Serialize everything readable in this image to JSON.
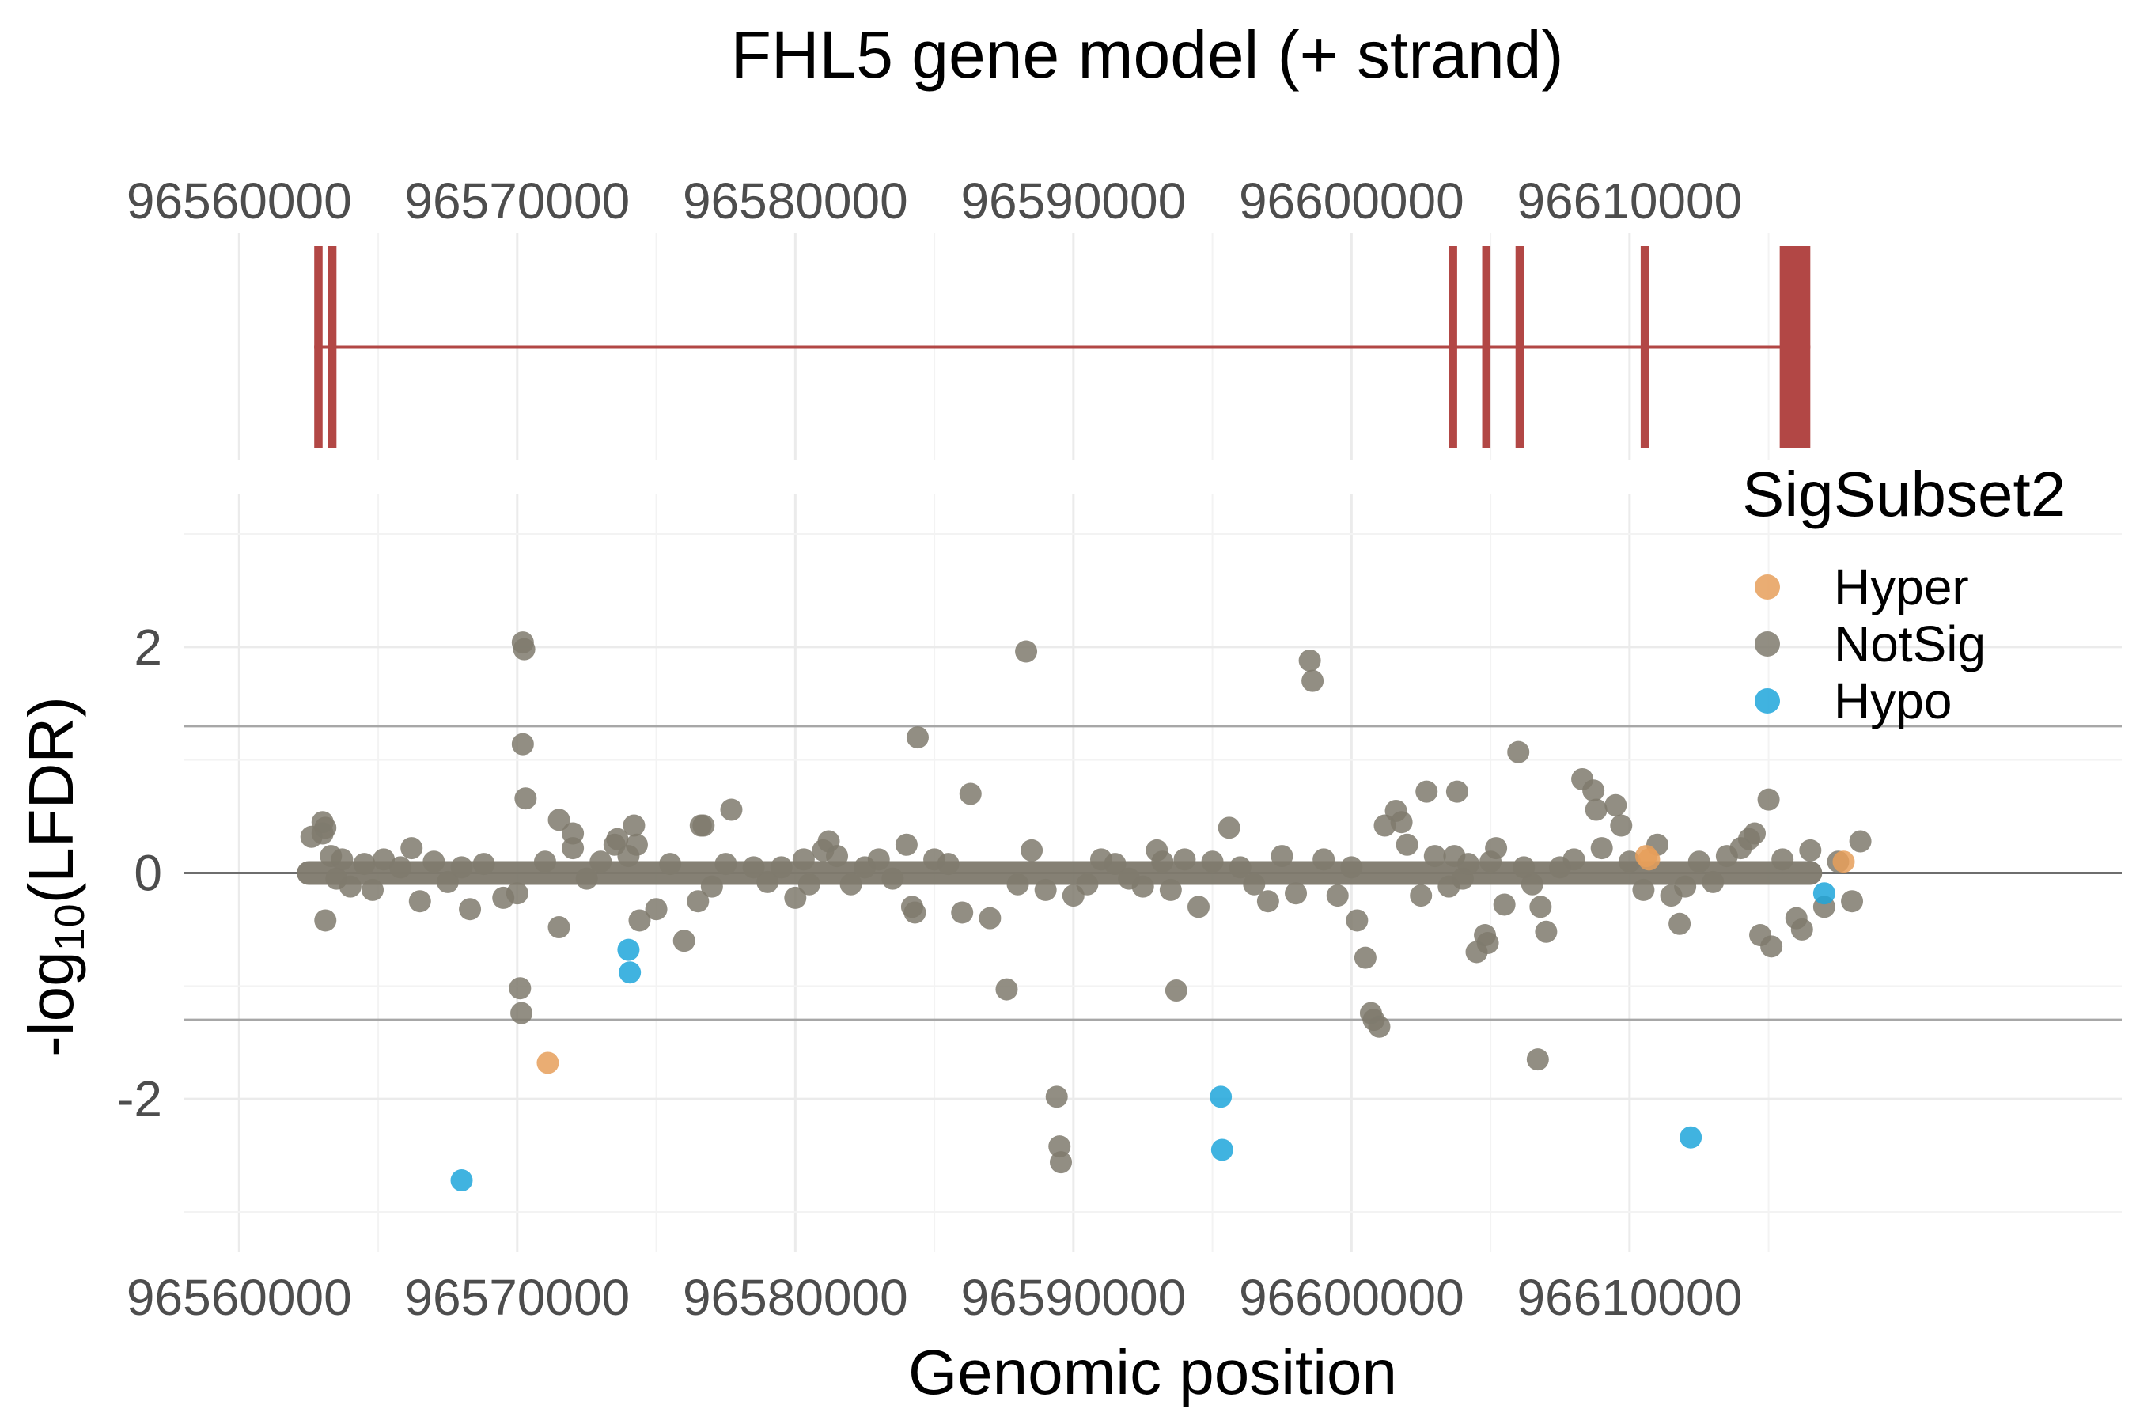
{
  "chart_data": [
    {
      "type": "gene_model",
      "title": "FHL5 gene model (+ strand)",
      "x_ticks": [
        96560000,
        96570000,
        96580000,
        96590000,
        96600000,
        96610000
      ],
      "x_tick_labels": [
        "96560000",
        "96570000",
        "96580000",
        "96590000",
        "96600000",
        "96610000"
      ],
      "xlim": [
        96558000,
        96627700
      ],
      "gene": {
        "start": 96562700,
        "end": 96616500
      },
      "exons": [
        {
          "start": 96562700,
          "end": 96563000
        },
        {
          "start": 96563200,
          "end": 96563500
        },
        {
          "start": 96603500,
          "end": 96603800
        },
        {
          "start": 96604700,
          "end": 96605000
        },
        {
          "start": 96605900,
          "end": 96606200
        },
        {
          "start": 96610400,
          "end": 96610700
        },
        {
          "start": 96615400,
          "end": 96616500
        }
      ],
      "colors": {
        "exon": "#b24745",
        "intron": "#b24745"
      }
    },
    {
      "type": "scatter",
      "xlabel": "Genomic position",
      "ylabel_main": "-log",
      "ylabel_sub": "10",
      "ylabel_tail": "(LFDR)",
      "x_ticks": [
        96560000,
        96570000,
        96580000,
        96590000,
        96600000,
        96610000
      ],
      "x_tick_labels": [
        "96560000",
        "96570000",
        "96580000",
        "96590000",
        "96600000",
        "96610000"
      ],
      "y_ticks": [
        -2,
        0,
        2
      ],
      "y_tick_labels": [
        "-2",
        "0",
        "2"
      ],
      "xlim": [
        96558000,
        96627700
      ],
      "ylim": [
        -3.35,
        3.35
      ],
      "hlines": [
        1.3,
        0,
        -1.3
      ],
      "grid": true,
      "legend": {
        "title": "SigSubset2",
        "placement": "top-right",
        "entries": [
          {
            "name": "Hyper",
            "color": "#E69F5B"
          },
          {
            "name": "NotSig",
            "color": "#7F7A6D"
          },
          {
            "name": "Hypo",
            "color": "#1FA6DA"
          }
        ]
      },
      "baseline": {
        "start": 96562500,
        "end": 96616500,
        "y": 0,
        "series": "NotSig"
      },
      "series": [
        {
          "name": "NotSig",
          "color": "#7F7A6D",
          "points": [
            [
              96562600,
              0.32
            ],
            [
              96563000,
              0.45
            ],
            [
              96563100,
              0.4
            ],
            [
              96563000,
              0.35
            ],
            [
              96563100,
              -0.42
            ],
            [
              96563300,
              0.15
            ],
            [
              96563500,
              -0.05
            ],
            [
              96563700,
              0.12
            ],
            [
              96564000,
              -0.12
            ],
            [
              96564500,
              0.08
            ],
            [
              96564800,
              -0.15
            ],
            [
              96565200,
              0.12
            ],
            [
              96565800,
              0.05
            ],
            [
              96566200,
              0.22
            ],
            [
              96566500,
              -0.25
            ],
            [
              96567000,
              0.1
            ],
            [
              96567500,
              -0.08
            ],
            [
              96568000,
              0.05
            ],
            [
              96568300,
              -0.32
            ],
            [
              96568800,
              0.08
            ],
            [
              96569500,
              -0.22
            ],
            [
              96570000,
              -0.18
            ],
            [
              96570200,
              2.04
            ],
            [
              96570250,
              1.98
            ],
            [
              96570200,
              1.14
            ],
            [
              96570300,
              0.66
            ],
            [
              96570100,
              -1.02
            ],
            [
              96570150,
              -1.24
            ],
            [
              96571000,
              0.1
            ],
            [
              96571500,
              0.47
            ],
            [
              96571500,
              -0.48
            ],
            [
              96572000,
              0.35
            ],
            [
              96572000,
              0.22
            ],
            [
              96572500,
              -0.05
            ],
            [
              96573000,
              0.1
            ],
            [
              96573500,
              0.25
            ],
            [
              96573600,
              0.3
            ],
            [
              96574000,
              0.15
            ],
            [
              96574200,
              0.42
            ],
            [
              96574300,
              0.25
            ],
            [
              96574400,
              -0.42
            ],
            [
              96575000,
              -0.32
            ],
            [
              96575500,
              0.08
            ],
            [
              96576000,
              -0.6
            ],
            [
              96576500,
              -0.25
            ],
            [
              96576600,
              0.42
            ],
            [
              96576700,
              0.42
            ],
            [
              96577000,
              -0.12
            ],
            [
              96577500,
              0.08
            ],
            [
              96577700,
              0.56
            ],
            [
              96578500,
              0.05
            ],
            [
              96579000,
              -0.08
            ],
            [
              96579500,
              0.05
            ],
            [
              96580000,
              -0.22
            ],
            [
              96580300,
              0.12
            ],
            [
              96580500,
              -0.1
            ],
            [
              96581000,
              0.2
            ],
            [
              96581200,
              0.28
            ],
            [
              96581500,
              0.15
            ],
            [
              96582000,
              -0.1
            ],
            [
              96582500,
              0.05
            ],
            [
              96583000,
              0.12
            ],
            [
              96583500,
              -0.05
            ],
            [
              96584000,
              0.25
            ],
            [
              96584200,
              -0.3
            ],
            [
              96584300,
              -0.35
            ],
            [
              96584400,
              1.2
            ],
            [
              96585000,
              0.12
            ],
            [
              96585500,
              0.08
            ],
            [
              96586000,
              -0.35
            ],
            [
              96586300,
              0.7
            ],
            [
              96587000,
              -0.4
            ],
            [
              96587600,
              -1.03
            ],
            [
              96588000,
              -0.1
            ],
            [
              96588300,
              1.96
            ],
            [
              96588500,
              0.2
            ],
            [
              96589000,
              -0.15
            ],
            [
              96589400,
              -1.98
            ],
            [
              96589500,
              -2.42
            ],
            [
              96589550,
              -2.56
            ],
            [
              96590000,
              -0.2
            ],
            [
              96590500,
              -0.1
            ],
            [
              96591000,
              0.12
            ],
            [
              96591500,
              0.08
            ],
            [
              96592000,
              -0.05
            ],
            [
              96592500,
              -0.12
            ],
            [
              96593000,
              0.2
            ],
            [
              96593200,
              0.1
            ],
            [
              96593500,
              -0.15
            ],
            [
              96593700,
              -1.04
            ],
            [
              96594000,
              0.12
            ],
            [
              96594500,
              -0.3
            ],
            [
              96595000,
              0.1
            ],
            [
              96595600,
              0.4
            ],
            [
              96596000,
              0.05
            ],
            [
              96596500,
              -0.1
            ],
            [
              96597000,
              -0.25
            ],
            [
              96597500,
              0.15
            ],
            [
              96598000,
              -0.18
            ],
            [
              96598500,
              1.88
            ],
            [
              96598600,
              1.7
            ],
            [
              96599000,
              0.12
            ],
            [
              96599500,
              -0.2
            ],
            [
              96600000,
              0.05
            ],
            [
              96600200,
              -0.42
            ],
            [
              96600500,
              -0.75
            ],
            [
              96600700,
              -1.24
            ],
            [
              96600800,
              -1.3
            ],
            [
              96601000,
              -1.36
            ],
            [
              96601200,
              0.42
            ],
            [
              96601600,
              0.55
            ],
            [
              96601800,
              0.45
            ],
            [
              96602000,
              0.25
            ],
            [
              96602500,
              -0.2
            ],
            [
              96602700,
              0.72
            ],
            [
              96603000,
              0.15
            ],
            [
              96603500,
              -0.12
            ],
            [
              96603700,
              0.15
            ],
            [
              96603800,
              0.72
            ],
            [
              96604000,
              -0.05
            ],
            [
              96604200,
              0.08
            ],
            [
              96604500,
              -0.7
            ],
            [
              96604800,
              -0.55
            ],
            [
              96604900,
              -0.62
            ],
            [
              96605000,
              0.1
            ],
            [
              96605200,
              0.22
            ],
            [
              96605500,
              -0.28
            ],
            [
              96606000,
              1.07
            ],
            [
              96606200,
              0.05
            ],
            [
              96606500,
              -0.1
            ],
            [
              96606700,
              -1.65
            ],
            [
              96606800,
              -0.3
            ],
            [
              96607000,
              -0.52
            ],
            [
              96607500,
              0.05
            ],
            [
              96608000,
              0.12
            ],
            [
              96608300,
              0.83
            ],
            [
              96608700,
              0.73
            ],
            [
              96608800,
              0.56
            ],
            [
              96609000,
              0.22
            ],
            [
              96609500,
              0.6
            ],
            [
              96609700,
              0.42
            ],
            [
              96610000,
              0.1
            ],
            [
              96610500,
              -0.15
            ],
            [
              96611000,
              0.25
            ],
            [
              96611500,
              -0.2
            ],
            [
              96611800,
              -0.45
            ],
            [
              96612000,
              -0.12
            ],
            [
              96612500,
              0.1
            ],
            [
              96613000,
              -0.08
            ],
            [
              96613500,
              0.15
            ],
            [
              96614000,
              0.22
            ],
            [
              96614300,
              0.3
            ],
            [
              96614500,
              0.35
            ],
            [
              96614700,
              -0.55
            ],
            [
              96615000,
              0.65
            ],
            [
              96615100,
              -0.65
            ],
            [
              96615500,
              0.12
            ],
            [
              96616000,
              -0.4
            ],
            [
              96616200,
              -0.5
            ],
            [
              96616500,
              0.2
            ],
            [
              96617000,
              -0.3
            ],
            [
              96617500,
              0.1
            ],
            [
              96618000,
              -0.25
            ],
            [
              96618300,
              0.28
            ]
          ]
        },
        {
          "name": "Hyper",
          "color": "#E69F5B",
          "points": [
            [
              96571100,
              -1.68
            ],
            [
              96610600,
              0.15
            ],
            [
              96610700,
              0.12
            ],
            [
              96617700,
              0.1
            ]
          ]
        },
        {
          "name": "Hypo",
          "color": "#1FA6DA",
          "points": [
            [
              96568000,
              -2.72
            ],
            [
              96574000,
              -0.68
            ],
            [
              96574050,
              -0.88
            ],
            [
              96595300,
              -1.98
            ],
            [
              96595350,
              -2.45
            ],
            [
              96612200,
              -2.34
            ],
            [
              96617000,
              -0.18
            ]
          ]
        }
      ]
    }
  ]
}
